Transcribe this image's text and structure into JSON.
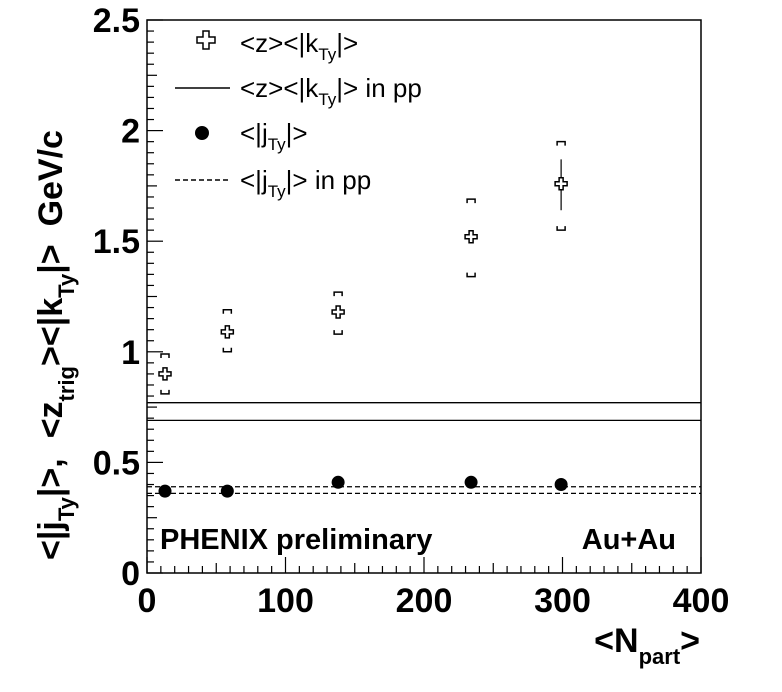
{
  "chart_data": {
    "type": "scatter",
    "xlim": [
      0,
      400
    ],
    "ylim": [
      0,
      2.5
    ],
    "x_ticks": [
      "0",
      "100",
      "200",
      "300",
      "400"
    ],
    "y_ticks": [
      "0",
      "0.5",
      "1",
      "1.5",
      "2",
      "2.5"
    ],
    "xlabel": {
      "main": "<N",
      "sub": "part",
      "end": ">"
    },
    "ylabel_lower": {
      "a": "<|j",
      "sub": "Ty",
      "b": "|>,"
    },
    "ylabel_upper": {
      "a": "<z",
      "sub1": "trig",
      "b": "><|k",
      "sub2": "Ty",
      "c": "|>",
      "unit": "GeV/c"
    },
    "series": [
      {
        "name": "<z><|k_Ty|>",
        "marker": "open-cross",
        "x": [
          13,
          58,
          138,
          234,
          299
        ],
        "y": [
          0.9,
          1.09,
          1.18,
          1.52,
          1.76
        ],
        "stat_err_low": [
          0.0,
          0.0,
          0.0,
          0.0,
          0.12
        ],
        "stat_err_high": [
          0.0,
          0.0,
          0.0,
          0.0,
          0.11
        ],
        "syst_low": [
          0.81,
          1.0,
          1.08,
          1.34,
          1.55
        ],
        "syst_high": [
          0.99,
          1.19,
          1.27,
          1.69,
          1.95
        ]
      },
      {
        "name": "<|j_Ty|>",
        "marker": "filled-circle",
        "x": [
          13,
          58,
          138,
          234,
          299
        ],
        "y": [
          0.37,
          0.37,
          0.41,
          0.41,
          0.4
        ]
      }
    ],
    "reference_lines": [
      {
        "name": "<z><|k_Ty|> in pp",
        "style": "solid",
        "y": 0.77
      },
      {
        "name": "<z><|k_Ty|> in pp",
        "style": "solid",
        "y": 0.69
      },
      {
        "name": "<|j_Ty|> in pp",
        "style": "dashed",
        "y": 0.39
      },
      {
        "name": "<|j_Ty|> in pp",
        "style": "dashed",
        "y": 0.36
      }
    ],
    "legend": {
      "placement": "top-left",
      "entries": [
        {
          "marker": "open-cross",
          "a": "<z><|k",
          "sub": "Ty",
          "b": "|>"
        },
        {
          "marker": "solid-line",
          "a": "<z><|k",
          "sub": "Ty",
          "b": "|> in pp"
        },
        {
          "marker": "filled-circle",
          "a": "<|j",
          "sub": "Ty",
          "b": "|>"
        },
        {
          "marker": "dashed-line",
          "a": "<|j",
          "sub": "Ty",
          "b": "|> in pp"
        }
      ]
    },
    "annotations": [
      "PHENIX preliminary",
      "Au+Au"
    ],
    "grid": false
  }
}
